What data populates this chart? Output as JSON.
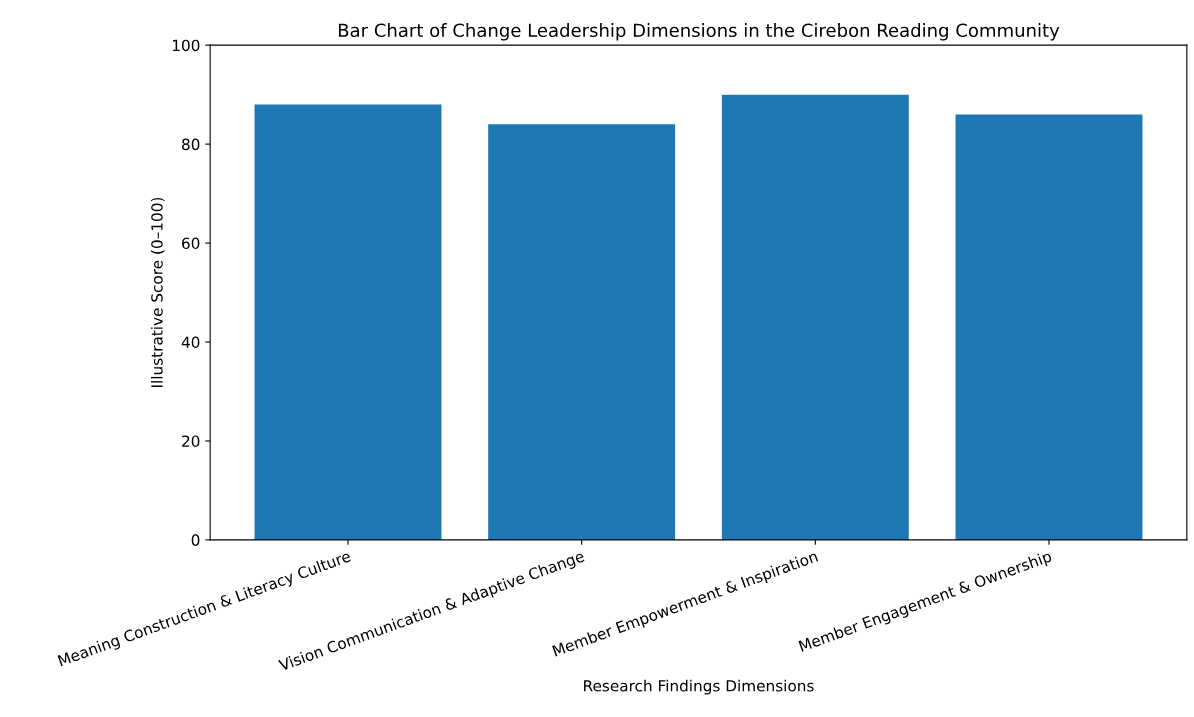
{
  "chart_data": {
    "type": "bar",
    "title": "Bar Chart of Change Leadership Dimensions in the Cirebon Reading Community",
    "xlabel": "Research Findings Dimensions",
    "ylabel": "Illustrative Score (0–100)",
    "categories": [
      "Meaning Construction & Literacy Culture",
      "Vision Communication & Adaptive Change",
      "Member Empowerment & Inspiration",
      "Member Engagement & Ownership"
    ],
    "values": [
      88,
      84,
      90,
      86
    ],
    "color": "#1f77b4",
    "ylim": [
      0,
      100
    ],
    "yticks": [
      0,
      20,
      40,
      60,
      80,
      100
    ],
    "grid": false,
    "legend": false
  }
}
